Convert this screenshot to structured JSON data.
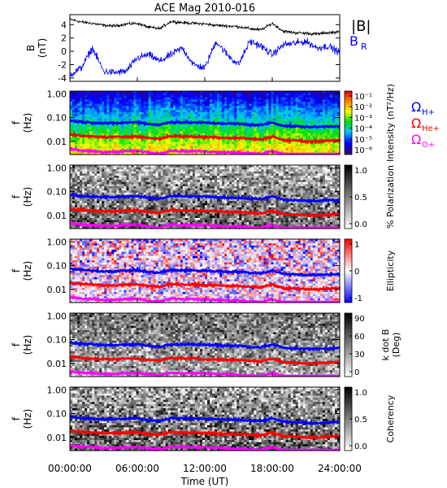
{
  "title": "ACE Mag 2010-016",
  "xlabel": "Time (UT)",
  "x_ticks": [
    "00:00:00",
    "06:00:00",
    "12:00:00",
    "18:00:00",
    "24:00:00"
  ],
  "x_tick_hours": [
    0,
    6,
    12,
    18,
    24
  ],
  "colors": {
    "bmag": "#000000",
    "br": "#0000ff",
    "omega_h": "#0000ff",
    "omega_he": "#ff0000",
    "omega_o": "#ff00ff"
  },
  "chart_data": [
    {
      "type": "line",
      "panel": "B",
      "ylabel": [
        "B",
        "(nT)"
      ],
      "ylim": [
        -4.5,
        5.5
      ],
      "y_ticks": [
        -4,
        -2,
        0,
        2,
        4
      ],
      "legend": [
        "|B|",
        "B",
        "R"
      ],
      "x_hours": [
        0,
        1,
        2,
        3,
        4,
        5,
        6,
        7,
        8,
        9,
        10,
        11,
        12,
        13,
        14,
        15,
        16,
        17,
        18,
        19,
        20,
        21,
        22,
        23,
        24
      ],
      "series": [
        {
          "name": "|B|",
          "values": [
            4.8,
            4.4,
            4.2,
            3.9,
            3.8,
            4.1,
            4.2,
            3.6,
            3.4,
            4.5,
            4.3,
            4.2,
            4.1,
            3.9,
            3.8,
            3.7,
            3.4,
            3.2,
            4.2,
            3.0,
            2.8,
            2.7,
            2.6,
            2.8,
            2.9
          ]
        },
        {
          "name": "B_R",
          "values": [
            -3.5,
            -2.5,
            0.5,
            -3.0,
            -3.2,
            -3.0,
            -1.0,
            -0.5,
            -1.5,
            -0.5,
            0.5,
            -2.0,
            -2.5,
            1.5,
            -0.5,
            -2.0,
            1.5,
            0.8,
            -0.5,
            1.0,
            1.2,
            1.5,
            0.5,
            0.8,
            -0.2
          ]
        }
      ]
    },
    {
      "type": "heatmap",
      "panel": "Intensity",
      "ylabel": [
        "f",
        "(Hz)"
      ],
      "y_ticks": [
        "1.00",
        "0.10",
        "0.01"
      ],
      "colorbar_label": "Intensity (nT²/Hz)",
      "colorbar_ticks": [
        "10⁻¹",
        "10⁻²",
        "10⁻³",
        "10⁻⁴",
        "10⁻⁵",
        "10⁻⁶"
      ],
      "overlay_legend": [
        "Ω",
        "H+",
        "Ω",
        "He+",
        "Ω",
        "O+"
      ]
    },
    {
      "type": "heatmap",
      "panel": "Polarization",
      "ylabel": [
        "f",
        "(Hz)"
      ],
      "y_ticks": [
        "1.00",
        "0.10",
        "0.01"
      ],
      "colorbar_label": "% Polarization",
      "colorbar_ticks": [
        "1.0",
        "0.5",
        "0.0"
      ]
    },
    {
      "type": "heatmap",
      "panel": "Ellipticity",
      "ylabel": [
        "f",
        "(Hz)"
      ],
      "y_ticks": [
        "1.00",
        "0.10",
        "0.01"
      ],
      "colorbar_label": "Ellipticity",
      "colorbar_ticks": [
        "1",
        "0",
        "-1"
      ]
    },
    {
      "type": "heatmap",
      "panel": "kdotB",
      "ylabel": [
        "f",
        "(Hz)"
      ],
      "y_ticks": [
        "1.00",
        "0.10",
        "0.01"
      ],
      "colorbar_label": [
        "k dot B",
        "(Deg)"
      ],
      "colorbar_ticks": [
        "90",
        "60",
        "30",
        "0"
      ]
    },
    {
      "type": "heatmap",
      "panel": "Coherency",
      "ylabel": [
        "f",
        "(Hz)"
      ],
      "y_ticks": [
        "1.00",
        "0.10",
        "0.01"
      ],
      "colorbar_label": "Coherency",
      "colorbar_ticks": [
        "1.0",
        "0.5",
        "0.0"
      ]
    }
  ],
  "gyrofrequency_hz": {
    "x_hours": [
      0,
      1,
      2,
      3,
      4,
      5,
      6,
      7,
      8,
      9,
      10,
      11,
      12,
      13,
      14,
      15,
      16,
      17,
      18,
      19,
      20,
      21,
      22,
      23,
      24
    ],
    "omega_h": [
      0.075,
      0.066,
      0.062,
      0.058,
      0.058,
      0.062,
      0.064,
      0.054,
      0.05,
      0.065,
      0.063,
      0.062,
      0.061,
      0.058,
      0.056,
      0.055,
      0.05,
      0.048,
      0.062,
      0.045,
      0.043,
      0.041,
      0.04,
      0.043,
      0.044
    ],
    "omega_he": [
      0.019,
      0.017,
      0.016,
      0.015,
      0.015,
      0.016,
      0.016,
      0.014,
      0.013,
      0.017,
      0.016,
      0.016,
      0.015,
      0.015,
      0.014,
      0.014,
      0.013,
      0.012,
      0.016,
      0.011,
      0.011,
      0.01,
      0.01,
      0.011,
      0.011
    ],
    "omega_o": [
      0.0046,
      0.0041,
      0.0039,
      0.0036,
      0.0036,
      0.0039,
      0.004,
      0.0034,
      0.0031,
      0.0041,
      0.0039,
      0.0039,
      0.0038,
      0.0036,
      0.0035,
      0.0034,
      0.0031,
      0.003,
      0.0039,
      0.0028,
      0.0027,
      0.0026,
      0.0025,
      0.0027,
      0.0028
    ]
  }
}
